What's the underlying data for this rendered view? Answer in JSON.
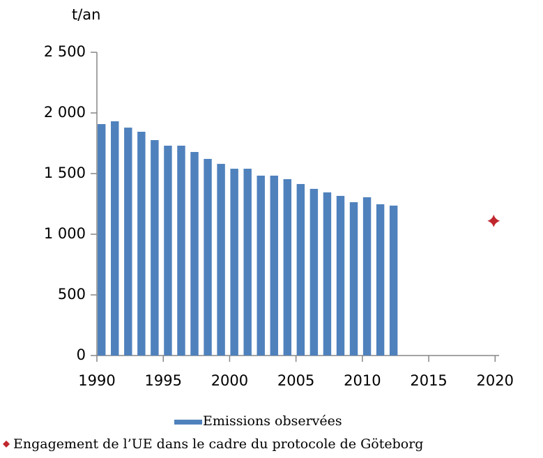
{
  "chart_data": {
    "type": "bar",
    "y_label": "t/an",
    "xlim": [
      1990,
      2020.3
    ],
    "xticks": [
      1990,
      1995,
      2000,
      2005,
      2010,
      2015,
      2020
    ],
    "ylim": [
      0,
      2500
    ],
    "yticks": [
      0,
      500,
      {
        "value": 1000,
        "label": "1 000"
      },
      {
        "value": 1500,
        "label": "1 500"
      },
      {
        "value": 2000,
        "label": "2 000"
      },
      {
        "value": 2500,
        "label": "2 500"
      }
    ],
    "grid": false,
    "legend": "bottom",
    "series": [
      {
        "name": "Emissions observées",
        "type": "bar",
        "color": "#4f81bd",
        "x": [
          1990,
          1991,
          1992,
          1993,
          1994,
          1995,
          1996,
          1997,
          1998,
          1999,
          2000,
          2001,
          2002,
          2003,
          2004,
          2005,
          2006,
          2007,
          2008,
          2009,
          2010,
          2011,
          2012
        ],
        "values": [
          1908,
          1931,
          1879,
          1845,
          1776,
          1730,
          1730,
          1678,
          1621,
          1580,
          1540,
          1540,
          1483,
          1483,
          1454,
          1414,
          1374,
          1345,
          1316,
          1264,
          1305,
          1247,
          1236
        ]
      },
      {
        "name": "Engagement de l’UE dans le cadre du protocole de Göteborg",
        "type": "scatter",
        "color": "#c0272d",
        "x": [
          2020
        ],
        "values": [
          1110
        ]
      }
    ]
  }
}
